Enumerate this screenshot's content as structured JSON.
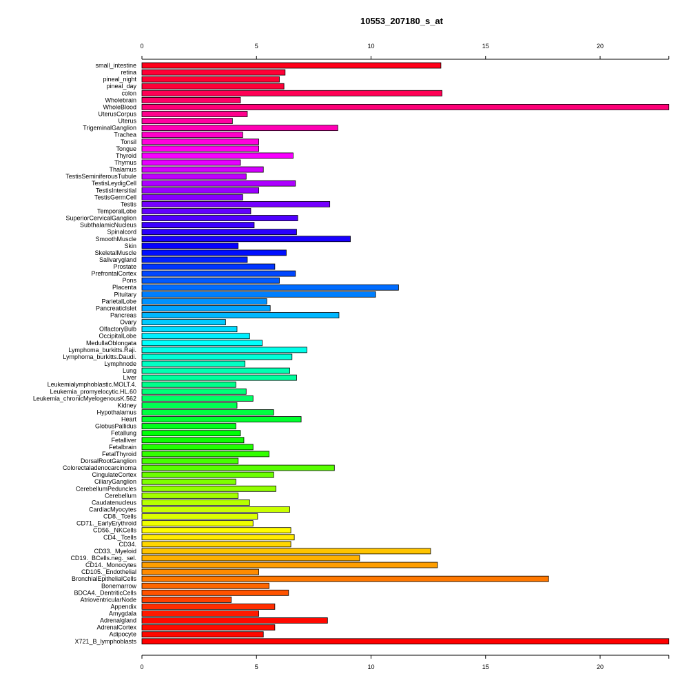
{
  "chart_data": {
    "type": "bar",
    "orientation": "horizontal",
    "title": "10553_207180_s_at",
    "xlabel": "",
    "ylabel": "",
    "xlim": [
      0,
      23
    ],
    "xticks": [
      0,
      5,
      10,
      15,
      20
    ],
    "grid": false,
    "categories": [
      "small_intestine",
      "retina",
      "pineal_night",
      "pineal_day",
      "colon",
      "Wholebrain",
      "WholeBlood",
      "UterusCorpus",
      "Uterus",
      "TrigeminalGanglion",
      "Trachea",
      "Tonsil",
      "Tongue",
      "Thyroid",
      "Thymus",
      "Thalamus",
      "TestisSeminiferousTubule",
      "TestisLeydigCell",
      "TestisIntersitial",
      "TestisGermCell",
      "Testis",
      "TemporalLobe",
      "SuperiorCervicalGanglion",
      "SubthalamicNucleus",
      "Spinalcord",
      "SmoothMuscle",
      "Skin",
      "SkeletalMuscle",
      "Salivarygland",
      "Prostate",
      "PrefrontalCortex",
      "Pons",
      "Placenta",
      "Pituitary",
      "ParietalLobe",
      "PancreaticIslet",
      "Pancreas",
      "Ovary",
      "OlfactoryBulb",
      "OccipitalLobe",
      "MedullaOblongata",
      "Lymphoma_burkitts.Raji.",
      "Lymphoma_burkitts.Daudi.",
      "Lymphnode",
      "Lung",
      "Liver",
      "Leukemialymphoblastic.MOLT.4.",
      "Leukemia_promyelocytic.HL.60",
      "Leukemia_chronicMyelogenousK.562",
      "Kidney",
      "Hypothalamus",
      "Heart",
      "GlobusPallidus",
      "Fetallung",
      "Fetalliver",
      "Fetalbrain",
      "FetalThyroid",
      "DorsalRootGanglion",
      "Colorectaladenocarcinoma",
      "CingulateCortex",
      "CiliaryGanglion",
      "CerebellumPeduncles",
      "Cerebellum",
      "Caudatenucleus",
      "CardiacMyocytes",
      "CD8._Tcells",
      "CD71._EarlyErythroid",
      "CD56._NKCells",
      "CD4._Tcells",
      "CD34.",
      "CD33._Myeloid",
      "CD19._BCells.neg._sel.",
      "CD14._Monocytes",
      "CD105._Endothelial",
      "BronchialEpithelialCells",
      "Bonemarrow",
      "BDCA4._DentriticCells",
      "AtrioventricularNode",
      "Appendix",
      "Amygdala",
      "Adrenalgland",
      "AdrenalCortex",
      "Adipocyte",
      "X721_B_lymphoblasts"
    ],
    "values": [
      13.05,
      6.25,
      6.0,
      6.2,
      13.1,
      4.3,
      23.0,
      4.6,
      3.95,
      8.55,
      4.4,
      5.1,
      5.1,
      6.6,
      4.3,
      5.3,
      4.55,
      6.7,
      5.1,
      4.4,
      8.2,
      4.75,
      6.8,
      4.9,
      6.75,
      9.1,
      4.2,
      6.3,
      4.6,
      5.8,
      6.7,
      6.0,
      11.2,
      10.2,
      5.45,
      5.6,
      8.6,
      3.65,
      4.15,
      4.7,
      5.25,
      7.2,
      6.55,
      4.5,
      6.45,
      6.75,
      4.1,
      4.55,
      4.85,
      4.15,
      5.75,
      6.95,
      4.1,
      4.3,
      4.45,
      4.85,
      5.55,
      4.2,
      8.4,
      5.75,
      4.1,
      5.85,
      4.2,
      4.7,
      6.45,
      5.05,
      4.85,
      6.5,
      6.65,
      6.5,
      12.6,
      9.5,
      12.9,
      5.1,
      17.75,
      5.55,
      6.4,
      3.9,
      5.8,
      5.1,
      8.1,
      5.8,
      5.3,
      23.0
    ],
    "colors": [
      "#FF0019",
      "#FF0036",
      "#FF0033",
      "#FF0038",
      "#FF0055",
      "#FF0066",
      "#FF0077",
      "#FF008C",
      "#FF00A0",
      "#FF00B4",
      "#FF00C8",
      "#FF00DC",
      "#FF00EE",
      "#F800FF",
      "#E600FF",
      "#D300FF",
      "#C000FF",
      "#AD00FF",
      "#9A00FF",
      "#8800FF",
      "#7500FF",
      "#6300FF",
      "#5000FF",
      "#3D00FF",
      "#2A00FF",
      "#1800FF",
      "#0500FF",
      "#000EFF",
      "#0021FF",
      "#0034FF",
      "#0047FF",
      "#005AFF",
      "#006CFF",
      "#007FFF",
      "#0092FF",
      "#00A4FF",
      "#00B7FF",
      "#00CAFF",
      "#00DCFF",
      "#00EFFF",
      "#00FFFD",
      "#00FFEA",
      "#00FFD7",
      "#00FFC4",
      "#00FFB1",
      "#00FF9E",
      "#00FF8B",
      "#00FF78",
      "#00FF65",
      "#00FF52",
      "#00FF40",
      "#00FF2D",
      "#00FF1A",
      "#00FF07",
      "#0DFF00",
      "#20FF00",
      "#33FF00",
      "#45FF00",
      "#58FF00",
      "#6BFF00",
      "#7EFF00",
      "#91FF00",
      "#A3FF00",
      "#B6FF00",
      "#C9FF00",
      "#DBFF00",
      "#EEFF00",
      "#FFFC00",
      "#FFEA00",
      "#FFD700",
      "#FFC400",
      "#FFB100",
      "#FF9E00",
      "#FF8B00",
      "#FF7800",
      "#FF6600",
      "#FF5300",
      "#FF4000",
      "#FF2D00",
      "#FF1A00",
      "#FF0800",
      "#FF0B00",
      "#FF0800",
      "#FF0000"
    ]
  }
}
